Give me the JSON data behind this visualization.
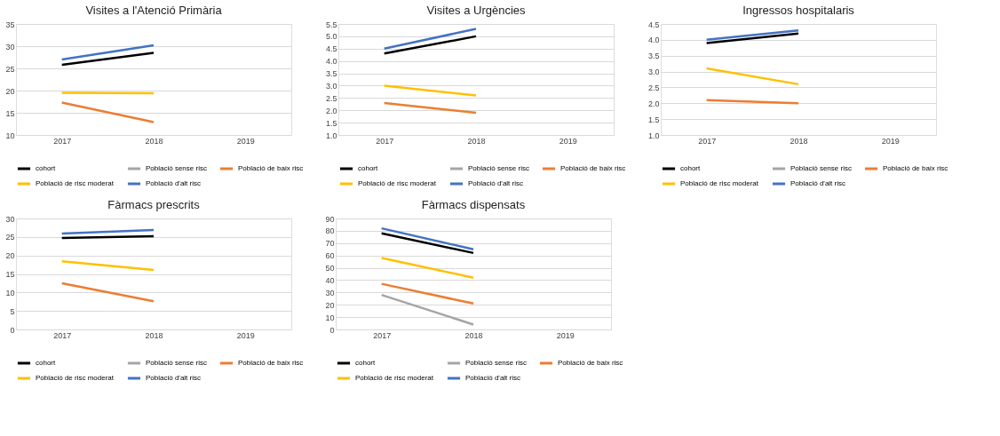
{
  "chart_data": [
    {
      "type": "line",
      "title": "Visites a l'Atenció Primària",
      "categories": [
        "2017",
        "2018",
        "2019"
      ],
      "ylim": [
        10,
        35
      ],
      "yticks": [
        10,
        15,
        20,
        25,
        30,
        35
      ],
      "grid": "y",
      "legend": "bottom",
      "marker": "none",
      "line_style": "solid",
      "series": [
        {
          "name": "cohort",
          "color": "#000000",
          "values": [
            25.8,
            28.5,
            null
          ]
        },
        {
          "name": "Població sense risc",
          "color": "#a5a5a5",
          "values": [
            null,
            null,
            null
          ]
        },
        {
          "name": "Població de baix risc",
          "color": "#ed7d31",
          "values": [
            17.3,
            12.9,
            null
          ]
        },
        {
          "name": "Població de risc moderat",
          "color": "#ffc000",
          "values": [
            19.5,
            19.4,
            null
          ]
        },
        {
          "name": "Població d'alt risc",
          "color": "#4472c4",
          "values": [
            27.0,
            30.2,
            null
          ]
        }
      ]
    },
    {
      "type": "line",
      "title": "Visites a Urgències",
      "categories": [
        "2017",
        "2018",
        "2019"
      ],
      "ylim": [
        1,
        5.5
      ],
      "yticks": [
        {
          "value": 1,
          "label": "1.0"
        },
        1.5,
        {
          "value": 2,
          "label": "2.0"
        },
        2.5,
        {
          "value": 3,
          "label": "3.0"
        },
        3.5,
        {
          "value": 4,
          "label": "4.0"
        },
        4.5,
        {
          "value": 5,
          "label": "5.0"
        },
        5.5
      ],
      "grid": "y",
      "legend": "bottom",
      "marker": "none",
      "line_style": "solid",
      "series": [
        {
          "name": "cohort",
          "color": "#000000",
          "values": [
            4.3,
            5.0,
            null
          ]
        },
        {
          "name": "Població sense risc",
          "color": "#a5a5a5",
          "values": [
            null,
            null,
            null
          ]
        },
        {
          "name": "Població de baix risc",
          "color": "#ed7d31",
          "values": [
            2.3,
            1.9,
            null
          ]
        },
        {
          "name": "Població de risc moderat",
          "color": "#ffc000",
          "values": [
            3.0,
            2.6,
            null
          ]
        },
        {
          "name": "Població d'alt risc",
          "color": "#4472c4",
          "values": [
            4.5,
            5.3,
            null
          ]
        }
      ]
    },
    {
      "type": "line",
      "title": "Ingressos hospitalaris",
      "categories": [
        "2017",
        "2018",
        "2019"
      ],
      "ylim": [
        1,
        4.5
      ],
      "yticks": [
        {
          "value": 1,
          "label": "1.0"
        },
        1.5,
        {
          "value": 2,
          "label": "2.0"
        },
        2.5,
        {
          "value": 3,
          "label": "3.0"
        },
        3.5,
        {
          "value": 4,
          "label": "4.0"
        },
        4.5
      ],
      "grid": "y",
      "legend": "bottom",
      "marker": "none",
      "line_style": "solid",
      "series": [
        {
          "name": "cohort",
          "color": "#000000",
          "values": [
            3.9,
            4.2,
            null
          ]
        },
        {
          "name": "Població sense risc",
          "color": "#a5a5a5",
          "values": [
            null,
            null,
            null
          ]
        },
        {
          "name": "Població de baix risc",
          "color": "#ed7d31",
          "values": [
            2.1,
            2.0,
            null
          ]
        },
        {
          "name": "Població de risc moderat",
          "color": "#ffc000",
          "values": [
            3.1,
            2.6,
            null
          ]
        },
        {
          "name": "Població d'alt risc",
          "color": "#4472c4",
          "values": [
            4.0,
            4.3,
            null
          ]
        }
      ]
    },
    {
      "type": "line",
      "title": "Fàrmacs prescrits",
      "categories": [
        "2017",
        "2018",
        "2019"
      ],
      "ylim": [
        0,
        30
      ],
      "yticks": [
        0,
        5,
        10,
        15,
        20,
        25,
        30
      ],
      "grid": "y",
      "legend": "bottom",
      "marker": "none",
      "line_style": "solid",
      "series": [
        {
          "name": "cohort",
          "color": "#000000",
          "values": [
            24.7,
            25.2,
            null
          ]
        },
        {
          "name": "Població sense risc",
          "color": "#a5a5a5",
          "values": [
            null,
            null,
            null
          ]
        },
        {
          "name": "Població de baix risc",
          "color": "#ed7d31",
          "values": [
            12.5,
            7.6,
            null
          ]
        },
        {
          "name": "Població de risc moderat",
          "color": "#ffc000",
          "values": [
            18.4,
            16.1,
            null
          ]
        },
        {
          "name": "Població d'alt risc",
          "color": "#4472c4",
          "values": [
            25.9,
            26.9,
            null
          ]
        }
      ]
    },
    {
      "type": "line",
      "title": "Fàrmacs dispensats",
      "categories": [
        "2017",
        "2018",
        "2019"
      ],
      "ylim": [
        0,
        90
      ],
      "yticks": [
        0,
        10,
        20,
        30,
        40,
        50,
        60,
        70,
        80,
        90
      ],
      "grid": "y",
      "legend": "bottom",
      "marker": "none",
      "line_style": "solid",
      "series": [
        {
          "name": "cohort",
          "color": "#000000",
          "values": [
            78,
            62,
            null
          ]
        },
        {
          "name": "Població sense risc",
          "color": "#a5a5a5",
          "values": [
            28,
            4,
            null
          ]
        },
        {
          "name": "Població de baix risc",
          "color": "#ed7d31",
          "values": [
            37,
            21,
            null
          ]
        },
        {
          "name": "Població de risc moderat",
          "color": "#ffc000",
          "values": [
            58,
            42,
            null
          ]
        },
        {
          "name": "Població d'alt risc",
          "color": "#4472c4",
          "values": [
            82,
            65,
            null
          ]
        }
      ]
    }
  ]
}
